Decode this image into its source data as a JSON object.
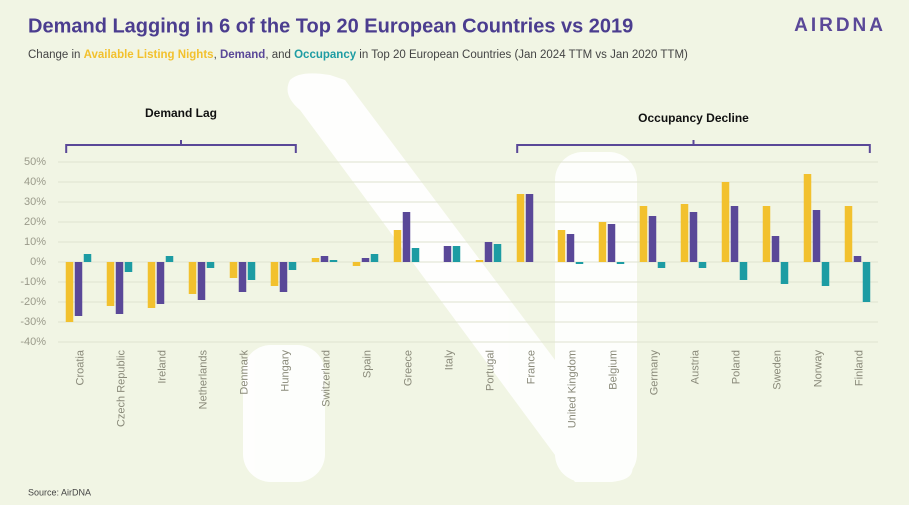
{
  "chart_data": {
    "type": "bar",
    "title": "Demand Lagging in 6 of the Top 20 European Countries vs 2019",
    "logo": "AIRDNA",
    "subtitle_parts": [
      "Change in ",
      ", ",
      ", and ",
      " in Top 20 European Countries (Jan 2024 TTM vs Jan 2020 TTM)"
    ],
    "annotations": [
      "Demand Lag",
      "Occupancy Decline"
    ],
    "source": "Source: AirDNA",
    "categories": [
      "Croatia",
      "Czech Republic",
      "Ireland",
      "Netherlands",
      "Denmark",
      "Hungary",
      "Switzerland",
      "Spain",
      "Greece",
      "Italy",
      "Portugal",
      "France",
      "United Kingdom",
      "Belgium",
      "Germany",
      "Austria",
      "Poland",
      "Sweden",
      "Norway",
      "Finland"
    ],
    "series": [
      {
        "name": "Available Listing Nights",
        "color": "#f2c12e",
        "values": [
          -30,
          -22,
          -23,
          -16,
          -8,
          -12,
          2,
          -2,
          16,
          0,
          1,
          34,
          16,
          20,
          28,
          29,
          40,
          28,
          44,
          28
        ]
      },
      {
        "name": "Demand",
        "color": "#5a4898",
        "values": [
          -27,
          -26,
          -21,
          -19,
          -15,
          -15,
          3,
          2,
          25,
          8,
          10,
          34,
          14,
          19,
          23,
          25,
          28,
          13,
          26,
          3
        ]
      },
      {
        "name": "Occupancy",
        "color": "#1d9ca3",
        "values": [
          4,
          -5,
          3,
          -3,
          -9,
          -4,
          1,
          4,
          7,
          8,
          9,
          0,
          -1,
          -1,
          -3,
          -3,
          -9,
          -11,
          -12,
          -20
        ]
      }
    ],
    "ylim": [
      -40,
      50
    ],
    "yticks": [
      {
        "value": -40,
        "label": "-40%"
      },
      {
        "value": -30,
        "label": "-30%"
      },
      {
        "value": -20,
        "label": "-20%"
      },
      {
        "value": -10,
        "label": "-10%"
      },
      {
        "value": 0,
        "label": "0%"
      },
      {
        "value": 10,
        "label": "10%"
      },
      {
        "value": 20,
        "label": "20%"
      },
      {
        "value": 30,
        "label": "30%"
      },
      {
        "value": 40,
        "label": "40%"
      },
      {
        "value": 50,
        "label": "50%"
      }
    ],
    "grid": true
  }
}
